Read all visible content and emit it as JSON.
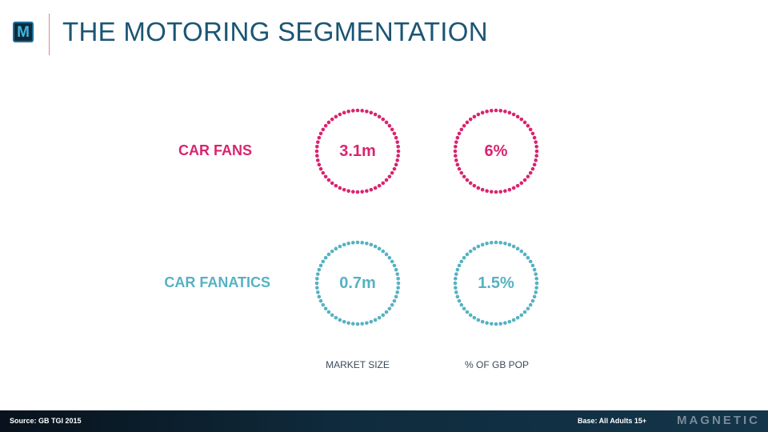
{
  "header": {
    "logo_letter": "M",
    "title": "THE MOTORING SEGMENTATION"
  },
  "rows": [
    {
      "label": "CAR FANS",
      "market_size": "3.1m",
      "pct_gb_pop": "6%",
      "color": "#d9246f"
    },
    {
      "label": "CAR FANATICS",
      "market_size": "0.7m",
      "pct_gb_pop": "1.5%",
      "color": "#56b2c2"
    }
  ],
  "columns": {
    "market_size": "MARKET SIZE",
    "pct_gb_pop": "% OF GB POP"
  },
  "footer": {
    "source": "Source: GB TGI 2015",
    "base": "Base: All Adults 15+",
    "brand": "MAGNETIC"
  }
}
